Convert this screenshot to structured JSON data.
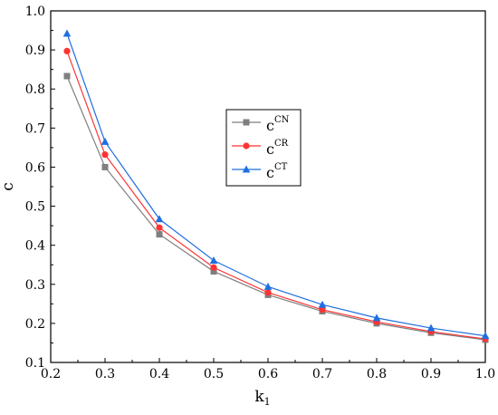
{
  "chart_data": {
    "type": "line",
    "xlabel": {
      "main": "k",
      "sub": "1"
    },
    "ylabel": "c",
    "xlim": [
      0.2,
      1.0
    ],
    "ylim": [
      0.1,
      1.0
    ],
    "xticks": [
      "0.2",
      "0.3",
      "0.4",
      "0.5",
      "0.6",
      "0.7",
      "0.8",
      "0.9",
      "1.0"
    ],
    "yticks": [
      "0.1",
      "0.2",
      "0.3",
      "0.4",
      "0.5",
      "0.6",
      "0.7",
      "0.8",
      "0.9",
      "1.0"
    ],
    "x": [
      0.23,
      0.3,
      0.4,
      0.5,
      0.6,
      0.7,
      0.8,
      0.9,
      1.0
    ],
    "series": [
      {
        "name": "c",
        "sup": "CN",
        "color": "#7f7f7f",
        "marker": "square",
        "values": [
          0.833,
          0.6,
          0.428,
          0.333,
          0.273,
          0.231,
          0.2,
          0.176,
          0.158
        ]
      },
      {
        "name": "c",
        "sup": "CR",
        "color": "#ff3333",
        "marker": "circle",
        "values": [
          0.897,
          0.632,
          0.445,
          0.343,
          0.279,
          0.235,
          0.204,
          0.179,
          0.16
        ]
      },
      {
        "name": "c",
        "sup": "CT",
        "color": "#1f6fe0",
        "marker": "triangle",
        "values": [
          0.942,
          0.665,
          0.467,
          0.361,
          0.294,
          0.248,
          0.214,
          0.188,
          0.168
        ]
      }
    ],
    "legend_position": "center-right"
  }
}
